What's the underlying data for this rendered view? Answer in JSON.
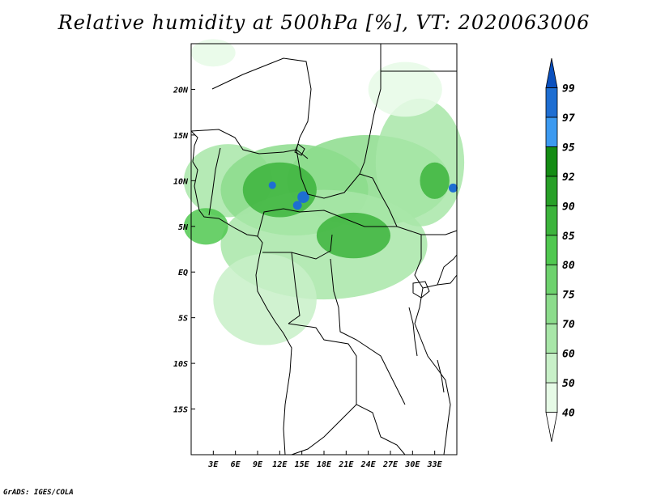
{
  "title": "Relative humidity at 500hPa [%], VT: 2020063006",
  "credit": "GrADS: IGES/COLA",
  "map": {
    "lon_range": [
      0,
      36
    ],
    "lat_range": [
      -20,
      25
    ],
    "lon_ticks": [
      "3E",
      "6E",
      "9E",
      "12E",
      "15E",
      "18E",
      "21E",
      "24E",
      "27E",
      "30E",
      "33E"
    ],
    "lat_ticks": [
      "20N",
      "15N",
      "10N",
      "5N",
      "EQ",
      "5S",
      "10S",
      "15S"
    ],
    "blobs": [
      {
        "lon": 5,
        "lat": 10,
        "rx": 6,
        "ry": 4,
        "level": 60
      },
      {
        "lon": 14,
        "lat": 9,
        "rx": 10,
        "ry": 5,
        "level": 70
      },
      {
        "lon": 24,
        "lat": 10,
        "rx": 11,
        "ry": 5,
        "level": 70
      },
      {
        "lon": 31,
        "lat": 12,
        "rx": 6,
        "ry": 7,
        "level": 60
      },
      {
        "lon": 18,
        "lat": 3,
        "rx": 14,
        "ry": 6,
        "level": 60
      },
      {
        "lon": 10,
        "lat": -3,
        "rx": 7,
        "ry": 5,
        "level": 50
      },
      {
        "lon": 12,
        "lat": 9,
        "rx": 5,
        "ry": 3,
        "level": 85
      },
      {
        "lon": 22,
        "lat": 4,
        "rx": 5,
        "ry": 2.5,
        "level": 85
      },
      {
        "lon": 2,
        "lat": 5,
        "rx": 3,
        "ry": 2,
        "level": 80
      },
      {
        "lon": 33,
        "lat": 10,
        "rx": 2,
        "ry": 2,
        "level": 85
      },
      {
        "lon": 29,
        "lat": 20,
        "rx": 5,
        "ry": 3,
        "level": 40
      },
      {
        "lon": 3,
        "lat": 24,
        "rx": 3,
        "ry": 1.5,
        "level": 40
      }
    ],
    "wet_spots": [
      {
        "lon": 15.2,
        "lat": 8.2,
        "r": 0.8,
        "level": 97
      },
      {
        "lon": 14.4,
        "lat": 7.3,
        "r": 0.6,
        "level": 97
      },
      {
        "lon": 11.0,
        "lat": 9.5,
        "r": 0.5,
        "level": 97
      },
      {
        "lon": 35.5,
        "lat": 9.2,
        "r": 0.6,
        "level": 97
      }
    ]
  },
  "colorbar": {
    "colors": [
      "#ffffff",
      "#e6fae6",
      "#c8f0c8",
      "#a8e6a8",
      "#8cdc8c",
      "#6ed26e",
      "#50c850",
      "#3cb43c",
      "#28a028",
      "#148c14",
      "#3c9af0",
      "#1e6ed2",
      "#0a50be"
    ],
    "labels": [
      "40",
      "50",
      "60",
      "70",
      "75",
      "80",
      "85",
      "90",
      "92",
      "95",
      "97",
      "99"
    ]
  }
}
